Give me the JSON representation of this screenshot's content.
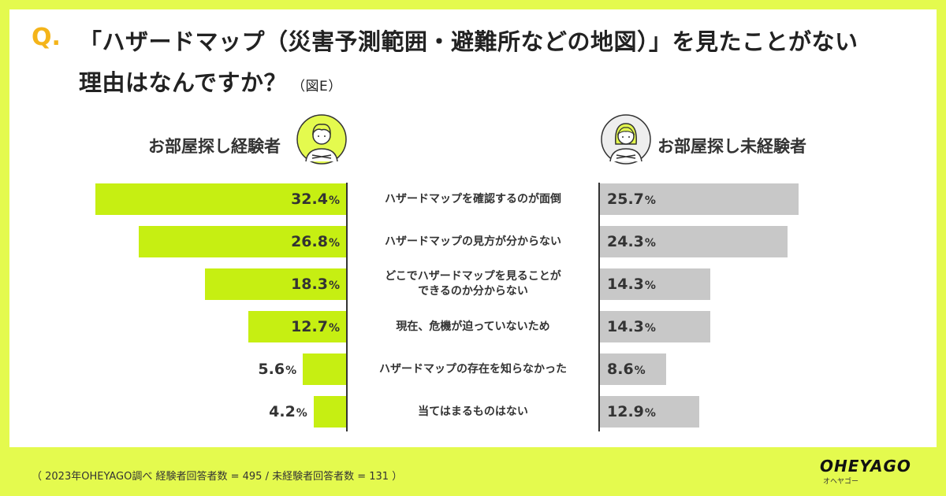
{
  "header": {
    "q_mark": "Q.",
    "title_line1": "「ハザードマップ（災害予測範囲・避難所などの地図）」を見たことがない",
    "title_line2": "理由はなんですか？",
    "title_note": "（図E）"
  },
  "groups": {
    "left_label": "お部屋探し経験者",
    "right_label": "お部屋探し未経験者"
  },
  "chart_data": {
    "type": "bar",
    "categories": [
      "ハザードマップを確認するのが面倒",
      "ハザードマップの見方が分からない",
      "どこでハザードマップを見ることが\nできるのか分からない",
      "現在、危機が迫っていないため",
      "ハザードマップの存在を知らなかった",
      "当てはまるものはない"
    ],
    "series": [
      {
        "name": "お部屋探し経験者",
        "color": "#c6ef12",
        "values": [
          32.4,
          26.8,
          18.3,
          12.7,
          5.6,
          4.2
        ],
        "labels": [
          "32.4",
          "26.8",
          "18.3",
          "12.7",
          "5.6",
          "4.2"
        ]
      },
      {
        "name": "お部屋探し未経験者",
        "color": "#c8c8c8",
        "values": [
          25.7,
          24.3,
          14.3,
          14.3,
          8.6,
          12.9
        ],
        "labels": [
          "25.7",
          "24.3",
          "14.3",
          "14.3",
          "8.6",
          "12.9"
        ]
      }
    ],
    "unit": "%",
    "layout": "butterfly"
  },
  "footer": {
    "source": "（ 2023年OHEYAGO調べ 経験者回答者数 = 495 / 未経験者回答者数 = 131 ）"
  },
  "logo": {
    "main": "OHEYAGO",
    "sub": "オヘヤゴー"
  }
}
